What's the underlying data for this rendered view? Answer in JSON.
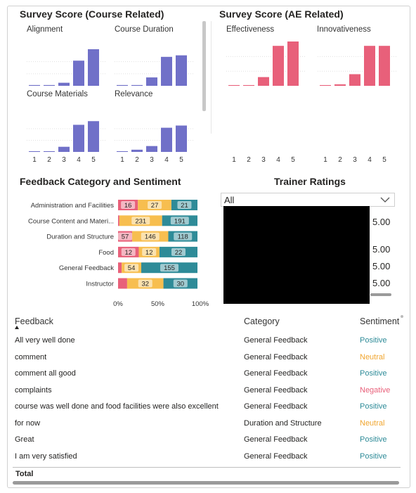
{
  "course_section": {
    "title": "Survey Score (Course Related)",
    "chart_data": [
      {
        "type": "bar",
        "title": "Alignment",
        "categories": [
          "1",
          "2",
          "3",
          "4",
          "5"
        ],
        "values": [
          1,
          1,
          4,
          33,
          48
        ],
        "color": "#7070c8"
      },
      {
        "type": "bar",
        "title": "Course Duration",
        "categories": [
          "1",
          "2",
          "3",
          "4",
          "5"
        ],
        "values": [
          1,
          1,
          11,
          38,
          40
        ],
        "color": "#7070c8"
      },
      {
        "type": "bar",
        "title": "Course Materials",
        "categories": [
          "1",
          "2",
          "3",
          "4",
          "5"
        ],
        "values": [
          1,
          1,
          7,
          37,
          42
        ],
        "color": "#7070c8"
      },
      {
        "type": "bar",
        "title": "Relevance",
        "categories": [
          "1",
          "2",
          "3",
          "4",
          "5"
        ],
        "values": [
          1,
          3,
          8,
          33,
          36
        ],
        "color": "#7070c8"
      }
    ]
  },
  "ae_section": {
    "title": "Survey Score (AE Related)",
    "chart_data": [
      {
        "type": "bar",
        "title": "Effectiveness",
        "categories": [
          "1",
          "2",
          "3",
          "4",
          "5"
        ],
        "values": [
          1,
          1,
          12,
          55,
          61
        ],
        "color": "#e8607a"
      },
      {
        "type": "bar",
        "title": "Innovativeness",
        "categories": [
          "1",
          "2",
          "3",
          "4",
          "5"
        ],
        "values": [
          1,
          2,
          16,
          55,
          55
        ],
        "color": "#e8607a"
      }
    ]
  },
  "feedback_section": {
    "title": "Feedback Category and Sentiment",
    "chart_data": {
      "type": "bar",
      "stacked": "100%",
      "orientation": "horizontal",
      "categories": [
        "Administration and Facilities",
        "Course Content and Materi...",
        "Duration and Structure",
        "Food",
        "General Feedback",
        "Instructor"
      ],
      "series": [
        {
          "name": "Negative",
          "color": "#e8607a",
          "values": [
            16,
            7,
            57,
            12,
            10,
            8
          ]
        },
        {
          "name": "Neutral",
          "color": "#f7be4f",
          "values": [
            27,
            231,
            146,
            12,
            54,
            32
          ]
        },
        {
          "name": "Positive",
          "color": "#2e8b98",
          "values": [
            21,
            191,
            118,
            22,
            155,
            30
          ]
        }
      ],
      "data_labels": [
        [
          "16",
          "27",
          "21"
        ],
        [
          "",
          "231",
          "191"
        ],
        [
          "57",
          "146",
          "118"
        ],
        [
          "12",
          "12",
          "22"
        ],
        [
          "",
          "54",
          "155"
        ],
        [
          "",
          "32",
          "30"
        ]
      ],
      "x_ticks": [
        "0%",
        "50%",
        "100%"
      ]
    }
  },
  "trainer": {
    "title": "Trainer Ratings",
    "filter_value": "All",
    "ratings": [
      "5.00",
      "5.00",
      "5.00",
      "5.00"
    ]
  },
  "table": {
    "columns": [
      "Feedback",
      "Category",
      "Sentiment"
    ],
    "rows": [
      {
        "feedback": "All very well done",
        "category": "General Feedback",
        "sentiment": "Positive"
      },
      {
        "feedback": "comment",
        "category": "General Feedback",
        "sentiment": "Neutral"
      },
      {
        "feedback": "comment all good",
        "category": "General Feedback",
        "sentiment": "Positive"
      },
      {
        "feedback": "complaints",
        "category": "General Feedback",
        "sentiment": "Negative"
      },
      {
        "feedback": "course was well done and food facilities were also excellent",
        "category": "General Feedback",
        "sentiment": "Positive"
      },
      {
        "feedback": "for now",
        "category": "Duration and Structure",
        "sentiment": "Neutral"
      },
      {
        "feedback": "Great",
        "category": "General Feedback",
        "sentiment": "Positive"
      },
      {
        "feedback": "I am very satisfied",
        "category": "General Feedback",
        "sentiment": "Positive"
      }
    ],
    "total_label": "Total",
    "sentiment_colors": {
      "Positive": "#2e8b98",
      "Neutral": "#f0a630",
      "Negative": "#e8607a"
    }
  }
}
